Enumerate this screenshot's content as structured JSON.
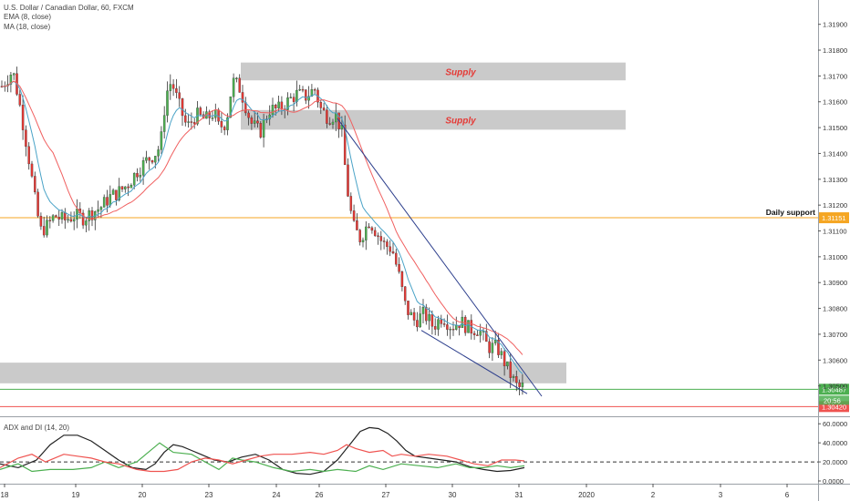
{
  "chart_data": [
    {
      "type": "candlestick",
      "title": "U.S. Dollar / Canadian Dollar, 60, FXCM",
      "indicators": [
        "EMA (8, close)",
        "MA (18, close)"
      ],
      "ylim": [
        1.304,
        1.3198
      ],
      "y_ticks": [
        "1.31900",
        "1.31800",
        "1.31700",
        "1.31600",
        "1.31500",
        "1.31400",
        "1.31300",
        "1.31200",
        "1.31100",
        "1.31000",
        "1.30900",
        "1.30800",
        "1.30700",
        "1.30600",
        "1.30500"
      ],
      "y_tick_values": [
        1.319,
        1.318,
        1.317,
        1.316,
        1.315,
        1.314,
        1.313,
        1.312,
        1.311,
        1.31,
        1.309,
        1.308,
        1.307,
        1.306,
        1.305
      ],
      "x_ticks": [
        "18",
        "19",
        "20",
        "23",
        "24",
        "26",
        "27",
        "30",
        "31",
        "2020",
        "2",
        "3",
        "6"
      ],
      "zones": [
        {
          "label": "Supply",
          "top": 1.31752,
          "bottom": 1.31683
        },
        {
          "label": "Supply",
          "top": 1.31568,
          "bottom": 1.31492
        },
        {
          "label": "",
          "top": 1.3059,
          "bottom": 1.3051
        }
      ],
      "horizontal_levels": [
        {
          "label": "Daily support",
          "price_label": "1.31151",
          "value": 1.31151,
          "color": "#f5a623"
        },
        {
          "label": "",
          "price_label": "1.30487",
          "value": 1.30487,
          "color": "#4caf50"
        },
        {
          "label": "",
          "price_label": "1.30420",
          "value": 1.3042,
          "color": "#ef5350"
        }
      ],
      "countdown": "20:56",
      "price_path": [
        [
          0,
          1.3165
        ],
        [
          6,
          1.3168
        ],
        [
          14,
          1.3172
        ],
        [
          20,
          1.3162
        ],
        [
          27,
          1.3148
        ],
        [
          33,
          1.3135
        ],
        [
          40,
          1.3118
        ],
        [
          45,
          1.311
        ],
        [
          52,
          1.3112
        ],
        [
          60,
          1.3116
        ],
        [
          70,
          1.3114
        ],
        [
          82,
          1.3116
        ],
        [
          92,
          1.3115
        ],
        [
          100,
          1.3117
        ],
        [
          110,
          1.3119
        ],
        [
          120,
          1.3123
        ],
        [
          130,
          1.3125
        ],
        [
          140,
          1.3128
        ],
        [
          150,
          1.3133
        ],
        [
          160,
          1.3137
        ],
        [
          170,
          1.314
        ],
        [
          176,
          1.3143
        ],
        [
          182,
          1.3163
        ],
        [
          188,
          1.3168
        ],
        [
          195,
          1.316
        ],
        [
          205,
          1.315
        ],
        [
          215,
          1.3155
        ],
        [
          225,
          1.3153
        ],
        [
          235,
          1.3156
        ],
        [
          240,
          1.315
        ],
        [
          248,
          1.3152
        ],
        [
          255,
          1.3168
        ],
        [
          262,
          1.3166
        ],
        [
          268,
          1.316
        ],
        [
          275,
          1.3152
        ],
        [
          285,
          1.3148
        ],
        [
          295,
          1.3157
        ],
        [
          305,
          1.3157
        ],
        [
          315,
          1.316
        ],
        [
          325,
          1.3163
        ],
        [
          335,
          1.3162
        ],
        [
          345,
          1.3165
        ],
        [
          352,
          1.3157
        ],
        [
          360,
          1.3154
        ],
        [
          368,
          1.3155
        ],
        [
          375,
          1.3148
        ],
        [
          380,
          1.3128
        ],
        [
          387,
          1.3112
        ],
        [
          395,
          1.3107
        ],
        [
          405,
          1.3114
        ],
        [
          412,
          1.311
        ],
        [
          420,
          1.3105
        ],
        [
          430,
          1.3103
        ],
        [
          438,
          1.3092
        ],
        [
          445,
          1.308
        ],
        [
          455,
          1.3075
        ],
        [
          465,
          1.3078
        ],
        [
          475,
          1.3073
        ],
        [
          485,
          1.3077
        ],
        [
          495,
          1.3073
        ],
        [
          505,
          1.3075
        ],
        [
          515,
          1.3072
        ],
        [
          525,
          1.3072
        ],
        [
          535,
          1.3065
        ],
        [
          545,
          1.3065
        ],
        [
          552,
          1.306
        ],
        [
          560,
          1.3054
        ],
        [
          568,
          1.3049
        ],
        [
          575,
          1.305
        ]
      ],
      "trendlines": [
        {
          "from": [
            370,
            1.31535
          ],
          "to": [
            594,
            1.3046
          ],
          "color": "#2c3e8c"
        },
        {
          "from": [
            462,
            1.30715
          ],
          "to": [
            578,
            1.3047
          ],
          "color": "#2c3e8c"
        }
      ],
      "grid": false,
      "price_axis_position": "right"
    },
    {
      "type": "line",
      "title": "ADX and DI (14, 20)",
      "ylim": [
        0,
        65
      ],
      "y_ticks": [
        "60.0000",
        "40.0000",
        "20.0000",
        "0.0000"
      ],
      "y_tick_values": [
        60,
        40,
        20,
        0
      ],
      "reference_line": 20,
      "series": [
        {
          "name": "",
          "color": "#222222",
          "values": [
            [
              0,
              18
            ],
            [
              20,
              14
            ],
            [
              40,
              22
            ],
            [
              55,
              38
            ],
            [
              70,
              48
            ],
            [
              85,
              48
            ],
            [
              100,
              42
            ],
            [
              115,
              32
            ],
            [
              130,
              22
            ],
            [
              145,
              14
            ],
            [
              160,
              12
            ],
            [
              170,
              18
            ],
            [
              180,
              30
            ],
            [
              190,
              38
            ],
            [
              200,
              36
            ],
            [
              210,
              32
            ],
            [
              220,
              28
            ],
            [
              235,
              22
            ],
            [
              250,
              20
            ],
            [
              265,
              25
            ],
            [
              280,
              28
            ],
            [
              295,
              22
            ],
            [
              310,
              12
            ],
            [
              325,
              8
            ],
            [
              340,
              7
            ],
            [
              355,
              10
            ],
            [
              370,
              22
            ],
            [
              385,
              40
            ],
            [
              395,
              52
            ],
            [
              405,
              56
            ],
            [
              415,
              55
            ],
            [
              425,
              50
            ],
            [
              435,
              42
            ],
            [
              445,
              32
            ],
            [
              455,
              26
            ],
            [
              470,
              24
            ],
            [
              485,
              22
            ],
            [
              500,
              20
            ],
            [
              515,
              15
            ],
            [
              530,
              12
            ],
            [
              545,
              10
            ],
            [
              560,
              11
            ],
            [
              575,
              14
            ]
          ]
        },
        {
          "name": "",
          "color": "#4caf50",
          "values": [
            [
              0,
              12
            ],
            [
              20,
              18
            ],
            [
              35,
              10
            ],
            [
              55,
              12
            ],
            [
              80,
              12
            ],
            [
              100,
              14
            ],
            [
              115,
              20
            ],
            [
              130,
              14
            ],
            [
              150,
              20
            ],
            [
              160,
              28
            ],
            [
              175,
              40
            ],
            [
              190,
              30
            ],
            [
              210,
              28
            ],
            [
              225,
              20
            ],
            [
              240,
              12
            ],
            [
              255,
              24
            ],
            [
              265,
              22
            ],
            [
              280,
              20
            ],
            [
              300,
              14
            ],
            [
              320,
              10
            ],
            [
              340,
              12
            ],
            [
              355,
              10
            ],
            [
              370,
              12
            ],
            [
              390,
              10
            ],
            [
              405,
              16
            ],
            [
              420,
              12
            ],
            [
              440,
              18
            ],
            [
              460,
              16
            ],
            [
              480,
              14
            ],
            [
              500,
              18
            ],
            [
              515,
              14
            ],
            [
              530,
              14
            ],
            [
              545,
              16
            ],
            [
              560,
              14
            ],
            [
              575,
              16
            ]
          ]
        },
        {
          "name": "",
          "color": "#ef5350",
          "values": [
            [
              0,
              14
            ],
            [
              20,
              24
            ],
            [
              35,
              28
            ],
            [
              50,
              20
            ],
            [
              70,
              28
            ],
            [
              85,
              26
            ],
            [
              100,
              24
            ],
            [
              115,
              20
            ],
            [
              130,
              18
            ],
            [
              150,
              12
            ],
            [
              165,
              10
            ],
            [
              180,
              10
            ],
            [
              195,
              12
            ],
            [
              210,
              20
            ],
            [
              225,
              24
            ],
            [
              240,
              22
            ],
            [
              255,
              18
            ],
            [
              270,
              22
            ],
            [
              285,
              26
            ],
            [
              300,
              28
            ],
            [
              320,
              28
            ],
            [
              340,
              30
            ],
            [
              355,
              28
            ],
            [
              370,
              32
            ],
            [
              380,
              38
            ],
            [
              390,
              34
            ],
            [
              405,
              30
            ],
            [
              420,
              32
            ],
            [
              430,
              26
            ],
            [
              440,
              28
            ],
            [
              455,
              26
            ],
            [
              470,
              28
            ],
            [
              490,
              26
            ],
            [
              505,
              22
            ],
            [
              520,
              18
            ],
            [
              535,
              16
            ],
            [
              550,
              22
            ],
            [
              565,
              22
            ],
            [
              575,
              21
            ]
          ]
        }
      ]
    }
  ]
}
